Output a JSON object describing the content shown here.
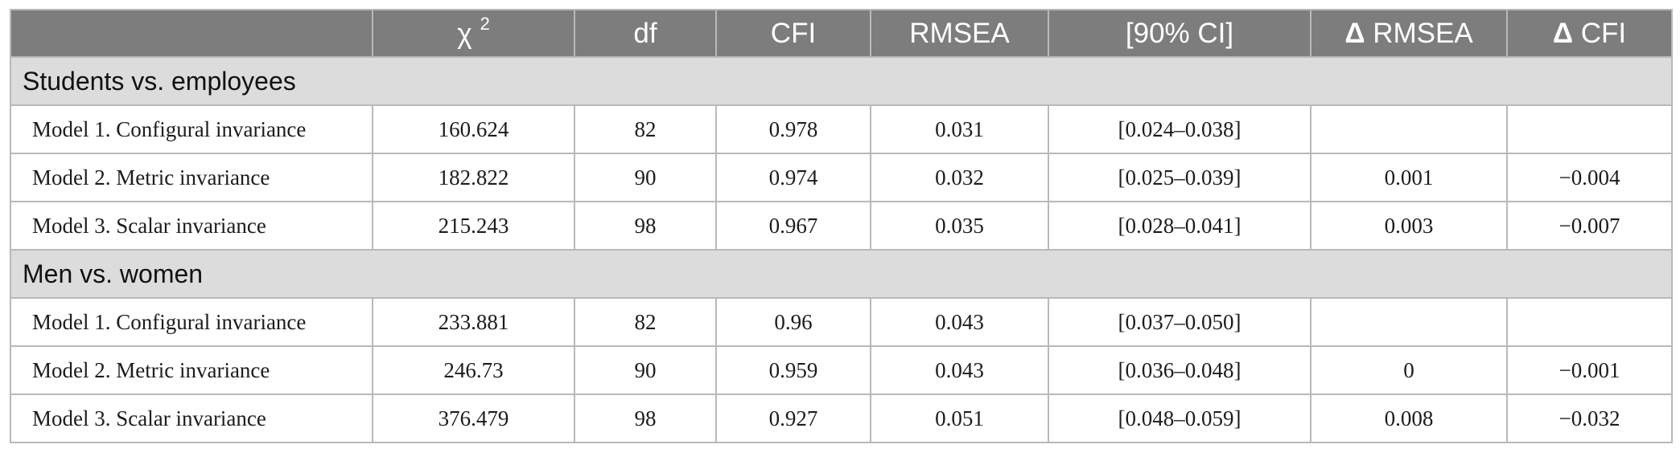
{
  "table": {
    "headers": [
      "",
      "χ",
      "df",
      "CFI",
      "RMSEA",
      "[90% CI]",
      "Δ RMSEA",
      "Δ CFI"
    ],
    "chi_superscript": "2",
    "delta_symbol": "Δ",
    "delta_rmsea_text": " RMSEA",
    "delta_cfi_text": " CFI",
    "groups": [
      {
        "title": "Students vs. employees",
        "rows": [
          {
            "model": "Model 1. Configural invariance",
            "chi2": "160.624",
            "df": "82",
            "cfi": "0.978",
            "rmsea": "0.031",
            "ci": "[0.024–0.038]",
            "d_rmsea": "",
            "d_cfi": ""
          },
          {
            "model": "Model 2. Metric invariance",
            "chi2": "182.822",
            "df": "90",
            "cfi": "0.974",
            "rmsea": "0.032",
            "ci": "[0.025–0.039]",
            "d_rmsea": "0.001",
            "d_cfi": "−0.004"
          },
          {
            "model": "Model 3. Scalar invariance",
            "chi2": "215.243",
            "df": "98",
            "cfi": "0.967",
            "rmsea": "0.035",
            "ci": "[0.028–0.041]",
            "d_rmsea": "0.003",
            "d_cfi": "−0.007"
          }
        ]
      },
      {
        "title": "Men vs. women",
        "rows": [
          {
            "model": "Model 1. Configural invariance",
            "chi2": "233.881",
            "df": "82",
            "cfi": "0.96",
            "rmsea": "0.043",
            "ci": "[0.037–0.050]",
            "d_rmsea": "",
            "d_cfi": ""
          },
          {
            "model": "Model 2. Metric invariance",
            "chi2": "246.73",
            "df": "90",
            "cfi": "0.959",
            "rmsea": "0.043",
            "ci": "[0.036–0.048]",
            "d_rmsea": "0",
            "d_cfi": "−0.001"
          },
          {
            "model": "Model 3. Scalar invariance",
            "chi2": "376.479",
            "df": "98",
            "cfi": "0.927",
            "rmsea": "0.051",
            "ci": "[0.048–0.059]",
            "d_rmsea": "0.008",
            "d_cfi": "−0.032"
          }
        ]
      }
    ]
  }
}
